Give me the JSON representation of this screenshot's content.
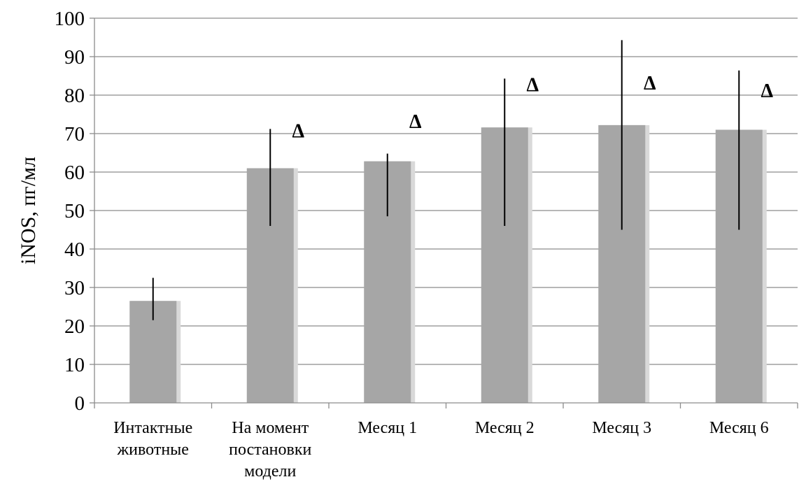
{
  "chart_data": {
    "type": "bar",
    "title": "",
    "xlabel": "",
    "ylabel": "iNOS, пг/мл",
    "ylim": [
      0,
      100
    ],
    "yticks": [
      0,
      10,
      20,
      30,
      40,
      50,
      60,
      70,
      80,
      90,
      100
    ],
    "grid": true,
    "legend": "none",
    "bar_color": "#a6a6a6",
    "categories": [
      [
        "Интактные",
        "животные"
      ],
      [
        "На момент",
        "постановки",
        "модели"
      ],
      [
        "Месяц 1"
      ],
      [
        "Месяц 2"
      ],
      [
        "Месяц 3"
      ],
      [
        "Месяц 6"
      ]
    ],
    "values": [
      26.5,
      61,
      62.8,
      71.6,
      72.2,
      71
    ],
    "error_low": [
      21.5,
      46,
      48.5,
      46,
      45,
      45
    ],
    "error_high": [
      32.5,
      71.2,
      64.8,
      84.3,
      94.3,
      86.4
    ],
    "annotations": [
      "",
      "Δ",
      "Δ",
      "Δ",
      "Δ",
      "Δ"
    ],
    "annotation_y": [
      0,
      69,
      71.5,
      81,
      81.5,
      79.5
    ]
  }
}
